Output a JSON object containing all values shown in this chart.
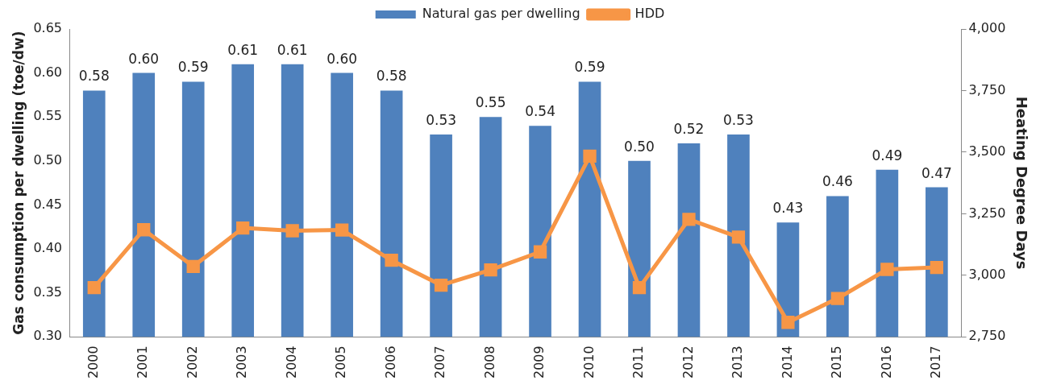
{
  "chart_data": {
    "type": "bar",
    "categories": [
      "2000",
      "2001",
      "2002",
      "2003",
      "2004",
      "2005",
      "2006",
      "2007",
      "2008",
      "2009",
      "2010",
      "2011",
      "2012",
      "2013",
      "2014",
      "2015",
      "2016",
      "2017"
    ],
    "series": [
      {
        "name": "Natural gas per dwelling",
        "color": "#4f81bd",
        "values": [
          0.58,
          0.6,
          0.59,
          0.61,
          0.61,
          0.6,
          0.58,
          0.53,
          0.55,
          0.54,
          0.59,
          0.5,
          0.52,
          0.53,
          0.43,
          0.46,
          0.49,
          0.47
        ],
        "value_labels": [
          "0.58",
          "0.60",
          "0.59",
          "0.61",
          "0.61",
          "0.60",
          "0.58",
          "0.53",
          "0.55",
          "0.54",
          "0.59",
          "0.50",
          "0.52",
          "0.53",
          "0.43",
          "0.46",
          "0.49",
          "0.47"
        ]
      },
      {
        "name": "HDD",
        "type": "line",
        "axis": "y2",
        "color": "#f79646",
        "marker": "square",
        "values": [
          2950,
          3185,
          3036,
          3192,
          3181,
          3184,
          3061,
          2960,
          3022,
          3095,
          3484,
          2950,
          3227,
          3155,
          2809,
          2906,
          3024,
          3032
        ]
      }
    ],
    "ylabel": "Gas consumption per dwelling (toe/dw)",
    "y2label": "Heating Degree Days",
    "ylim": [
      0.3,
      0.65
    ],
    "yticks": [
      {
        "value": 0.3,
        "label": "0.30"
      },
      {
        "value": 0.35,
        "label": "0.35"
      },
      {
        "value": 0.4,
        "label": "0.40"
      },
      {
        "value": 0.45,
        "label": "0.45"
      },
      {
        "value": 0.5,
        "label": "0.50"
      },
      {
        "value": 0.55,
        "label": "0.55"
      },
      {
        "value": 0.6,
        "label": "0.60"
      },
      {
        "value": 0.65,
        "label": "0.65"
      }
    ],
    "y2lim": [
      2750,
      4000
    ],
    "y2ticks": [
      {
        "value": 2750,
        "label": "2,750"
      },
      {
        "value": 3000,
        "label": "3,000"
      },
      {
        "value": 3250,
        "label": "3,250"
      },
      {
        "value": 3500,
        "label": "3,500"
      },
      {
        "value": 3750,
        "label": "3,750"
      },
      {
        "value": 4000,
        "label": "4,000"
      }
    ],
    "grid": false,
    "legend": "top"
  }
}
